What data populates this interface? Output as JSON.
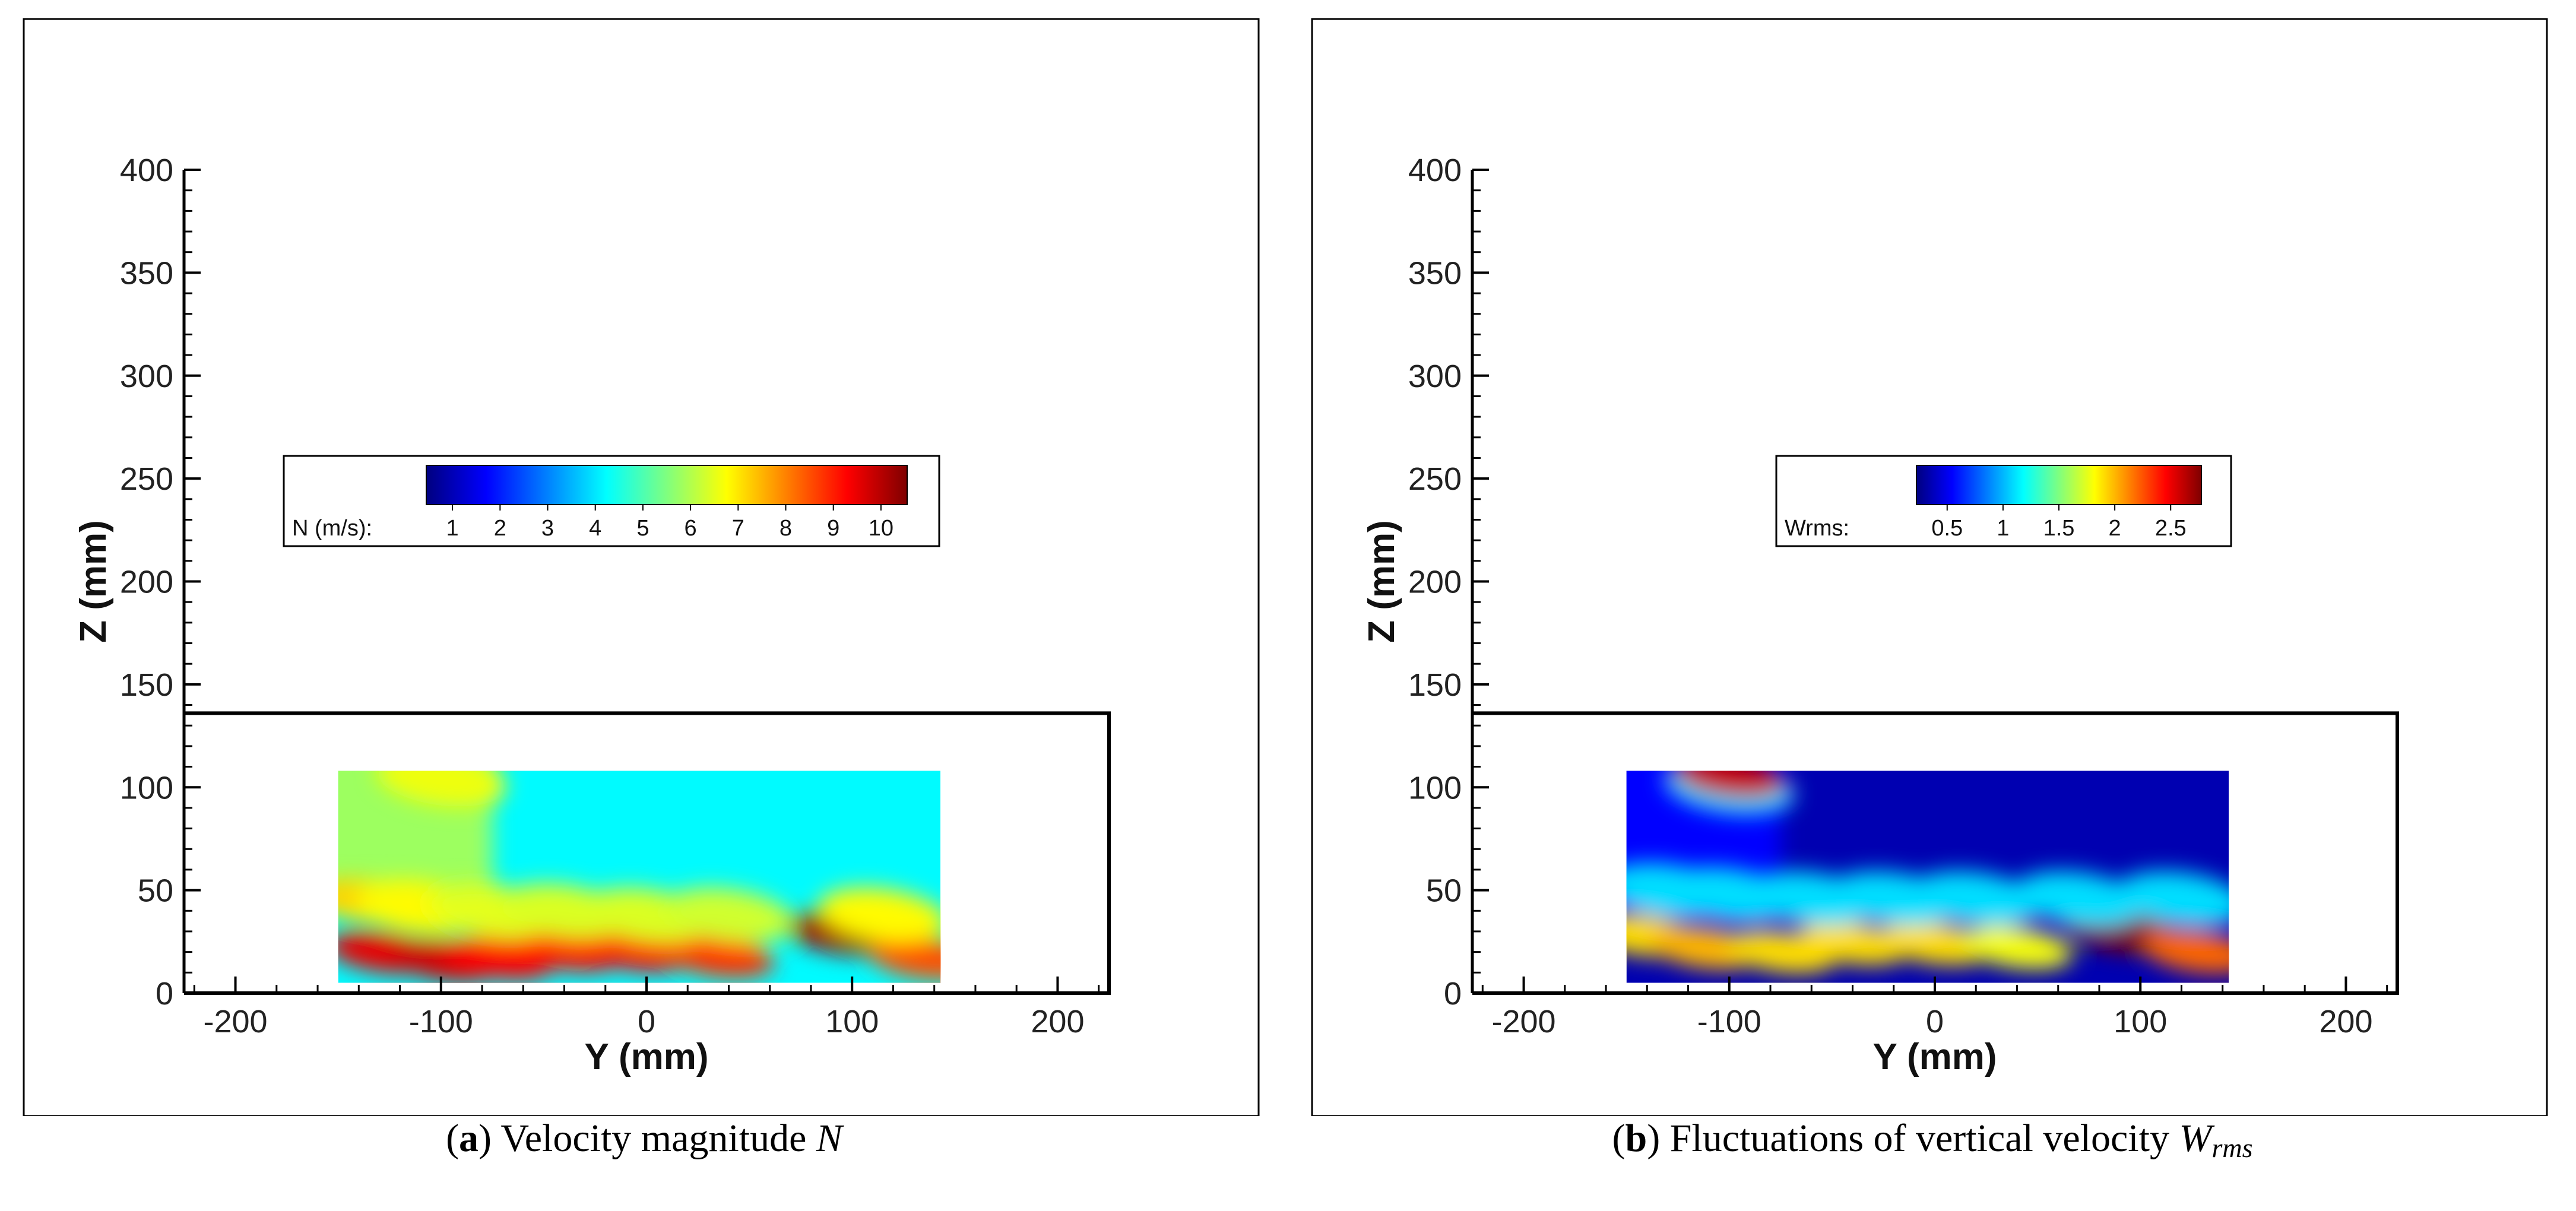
{
  "chart_data": [
    {
      "type": "heatmap",
      "panel_label": "a",
      "caption": "Velocity magnitude",
      "caption_var": "N",
      "xlabel": "Y (mm)",
      "ylabel": "Z (mm)",
      "xlim": [
        -225,
        225
      ],
      "ylim": [
        0,
        400
      ],
      "xticks": [
        -200,
        -100,
        0,
        100,
        200
      ],
      "yticks": [
        0,
        50,
        100,
        150,
        200,
        250,
        300,
        350,
        400
      ],
      "field_extent": {
        "y": [
          -150,
          143
        ],
        "z": [
          5,
          108
        ]
      },
      "boundary_height": 136,
      "legend_title": "N (m/s):",
      "legend_ticks": [
        1,
        2,
        3,
        4,
        5,
        6,
        7,
        8,
        9,
        10
      ],
      "colormap": [
        "#00007f",
        "#0000ff",
        "#007fff",
        "#00ffff",
        "#7fff7f",
        "#ffff00",
        "#ff7f00",
        "#ff0000",
        "#7f0000"
      ],
      "background_value": 4.2,
      "top_left_value": 5.8,
      "blobs": [
        {
          "y": -128,
          "z": 20,
          "value": 9.5
        },
        {
          "y": -98,
          "z": 16,
          "value": 9.7
        },
        {
          "y": -72,
          "z": 17,
          "value": 9.3
        },
        {
          "y": -38,
          "z": 21,
          "value": 9.2
        },
        {
          "y": -5,
          "z": 21,
          "value": 9.3
        },
        {
          "y": 35,
          "z": 18,
          "value": 8.8
        },
        {
          "y": 95,
          "z": 29,
          "value": 10.2
        },
        {
          "y": 135,
          "z": 17,
          "value": 8.5
        },
        {
          "y": -135,
          "z": 45,
          "value": 7.2
        },
        {
          "y": -110,
          "z": 42,
          "value": 6.8
        },
        {
          "y": -75,
          "z": 40,
          "value": 6.5
        },
        {
          "y": -40,
          "z": 40,
          "value": 6.4
        },
        {
          "y": 0,
          "z": 38,
          "value": 6.4
        },
        {
          "y": 40,
          "z": 38,
          "value": 6.3
        },
        {
          "y": 115,
          "z": 38,
          "value": 6.8
        },
        {
          "y": -100,
          "z": 104,
          "value": 6.6
        }
      ]
    },
    {
      "type": "heatmap",
      "panel_label": "b",
      "caption": "Fluctuations of vertical velocity",
      "caption_var": "W",
      "caption_sub": "rms",
      "xlabel": "Y (mm)",
      "ylabel": "Z (mm)",
      "xlim": [
        -225,
        225
      ],
      "ylim": [
        0,
        400
      ],
      "xticks": [
        -200,
        -100,
        0,
        100,
        200
      ],
      "yticks": [
        0,
        50,
        100,
        150,
        200,
        250,
        300,
        350,
        400
      ],
      "field_extent": {
        "y": [
          -150,
          143
        ],
        "z": [
          5,
          108
        ]
      },
      "boundary_height": 136,
      "legend_title": "Wrms:",
      "legend_ticks": [
        0.5,
        1,
        1.5,
        2,
        2.5
      ],
      "colormap": [
        "#00007f",
        "#0000ff",
        "#007fff",
        "#00ffff",
        "#7fff7f",
        "#ffff00",
        "#ff7f00",
        "#ff0000",
        "#7f0000"
      ],
      "background_value": 0.35,
      "top_left_value": 0.55,
      "blobs": [
        {
          "y": -142,
          "z": 28,
          "value": 1.9
        },
        {
          "y": -112,
          "z": 22,
          "value": 2.0
        },
        {
          "y": -75,
          "z": 20,
          "value": 1.9
        },
        {
          "y": -40,
          "z": 24,
          "value": 1.9
        },
        {
          "y": 0,
          "z": 24,
          "value": 1.9
        },
        {
          "y": 40,
          "z": 22,
          "value": 1.8
        },
        {
          "y": 90,
          "z": 30,
          "value": 2.9
        },
        {
          "y": 128,
          "z": 20,
          "value": 2.2
        },
        {
          "y": -130,
          "z": 50,
          "value": 1.1
        },
        {
          "y": -100,
          "z": 48,
          "value": 1.1
        },
        {
          "y": -60,
          "z": 46,
          "value": 1.1
        },
        {
          "y": -20,
          "z": 46,
          "value": 1.1
        },
        {
          "y": 20,
          "z": 46,
          "value": 1.1
        },
        {
          "y": 70,
          "z": 46,
          "value": 1.1
        },
        {
          "y": 120,
          "z": 46,
          "value": 1.1
        },
        {
          "y": -100,
          "z": 100,
          "value": 1.1
        },
        {
          "y": -100,
          "z": 105,
          "value": 2.6
        }
      ]
    }
  ]
}
